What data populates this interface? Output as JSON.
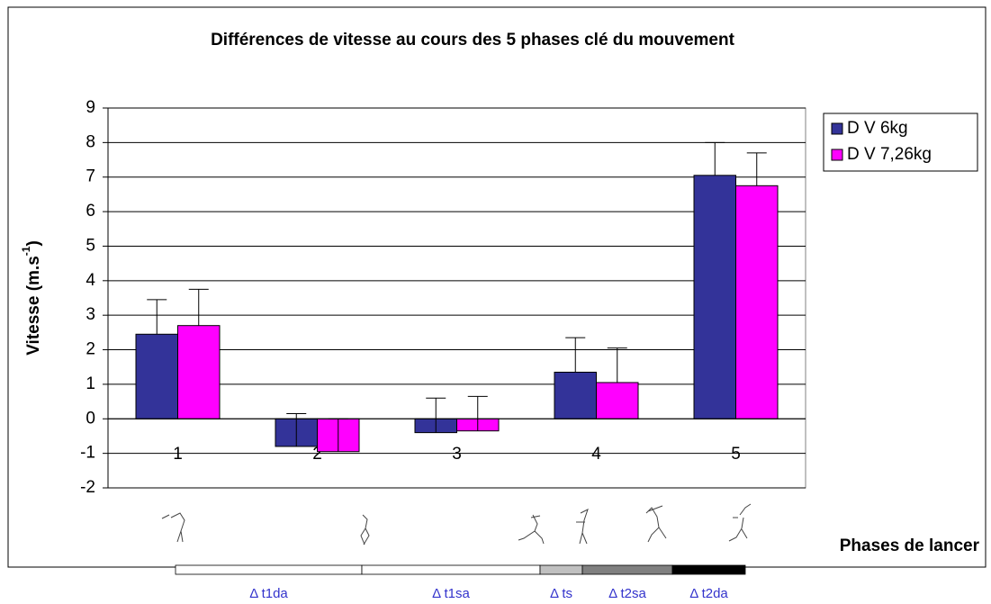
{
  "chart_data": {
    "type": "bar",
    "title": "Différences de vitesse au cours des 5 phases clé du  mouvement",
    "y_label": {
      "text": "Vitesse (m.s",
      "sup": "-1",
      "close": ")"
    },
    "x_note": "Phases de lancer",
    "categories": [
      "1",
      "2",
      "3",
      "4",
      "5"
    ],
    "series": [
      {
        "name": "D V 6kg",
        "color": "#333399",
        "values": [
          2.45,
          -0.8,
          -0.4,
          1.35,
          7.05
        ],
        "errors": [
          1.0,
          0.95,
          1.0,
          1.0,
          0.95
        ]
      },
      {
        "name": "D V 7,26kg",
        "color": "#ff00ff",
        "values": [
          2.7,
          -0.95,
          -0.35,
          1.05,
          6.75
        ],
        "errors": [
          1.05,
          0.95,
          1.0,
          1.0,
          0.95
        ]
      }
    ],
    "ylim": [
      -2,
      9
    ],
    "yticks": [
      -2,
      -1,
      0,
      1,
      2,
      3,
      4,
      5,
      6,
      7,
      8,
      9
    ],
    "grid": true,
    "legend": "right",
    "timeline": [
      {
        "label": "Δ t1da",
        "color": "#ffffff"
      },
      {
        "label": "Δ t1sa",
        "color": "#ffffff"
      },
      {
        "label": "Δ ts",
        "color": "#c0c0c0"
      },
      {
        "label": "Δ t2sa",
        "color": "#808080"
      },
      {
        "label": "Δ t2da",
        "color": "#000000"
      }
    ]
  }
}
